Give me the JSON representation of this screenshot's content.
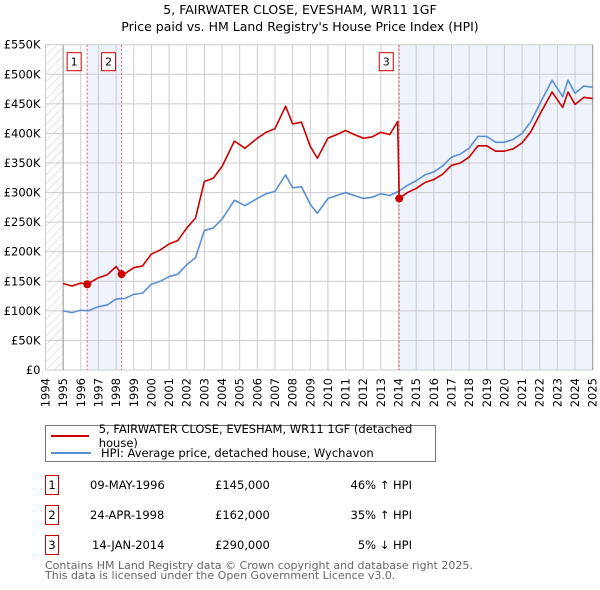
{
  "chart_data": {
    "type": "line",
    "title": "5, FAIRWATER CLOSE, EVESHAM, WR11 1GF",
    "subtitle": "Price paid vs. HM Land Registry's House Price Index (HPI)",
    "xlim": [
      1994,
      2025
    ],
    "ylim": [
      0,
      550000
    ],
    "x_ticks": [
      "1994",
      "1995",
      "1996",
      "1997",
      "1998",
      "1999",
      "2000",
      "2001",
      "2002",
      "2003",
      "2004",
      "2005",
      "2006",
      "2007",
      "2008",
      "2009",
      "2010",
      "2011",
      "2012",
      "2013",
      "2014",
      "2015",
      "2016",
      "2017",
      "2018",
      "2019",
      "2020",
      "2021",
      "2022",
      "2023",
      "2024",
      "2025"
    ],
    "y_ticks": [
      {
        "v": 0,
        "label": "£0"
      },
      {
        "v": 50000,
        "label": "£50K"
      },
      {
        "v": 100000,
        "label": "£100K"
      },
      {
        "v": 150000,
        "label": "£150K"
      },
      {
        "v": 200000,
        "label": "£200K"
      },
      {
        "v": 250000,
        "label": "£250K"
      },
      {
        "v": 300000,
        "label": "£300K"
      },
      {
        "v": 350000,
        "label": "£350K"
      },
      {
        "v": 400000,
        "label": "£400K"
      },
      {
        "v": 450000,
        "label": "£450K"
      },
      {
        "v": 500000,
        "label": "£500K"
      },
      {
        "v": 550000,
        "label": "£550K"
      }
    ],
    "grid": true,
    "series": [
      {
        "name": "5, FAIRWATER CLOSE, EVESHAM, WR11 1GF (detached house)",
        "color": "#cc0000",
        "points": [
          [
            1995.0,
            146000
          ],
          [
            1995.5,
            142000
          ],
          [
            1996.0,
            147000
          ],
          [
            1996.36,
            145000
          ],
          [
            1997.0,
            156000
          ],
          [
            1997.5,
            161000
          ],
          [
            1998.0,
            175000
          ],
          [
            1998.31,
            162000
          ],
          [
            1998.5,
            163000
          ],
          [
            1999.0,
            173000
          ],
          [
            1999.5,
            176000
          ],
          [
            2000.0,
            196000
          ],
          [
            2000.5,
            203000
          ],
          [
            2001.0,
            213000
          ],
          [
            2001.5,
            219000
          ],
          [
            2002.0,
            240000
          ],
          [
            2002.5,
            257000
          ],
          [
            2003.0,
            319000
          ],
          [
            2003.5,
            324000
          ],
          [
            2004.0,
            344000
          ],
          [
            2004.7,
            387000
          ],
          [
            2005.3,
            375000
          ],
          [
            2006.0,
            392000
          ],
          [
            2006.5,
            402000
          ],
          [
            2007.0,
            408000
          ],
          [
            2007.6,
            446000
          ],
          [
            2008.0,
            416000
          ],
          [
            2008.5,
            419000
          ],
          [
            2009.0,
            378000
          ],
          [
            2009.4,
            358000
          ],
          [
            2010.0,
            392000
          ],
          [
            2010.5,
            398000
          ],
          [
            2011.0,
            405000
          ],
          [
            2011.5,
            398000
          ],
          [
            2012.0,
            392000
          ],
          [
            2012.5,
            394000
          ],
          [
            2013.0,
            402000
          ],
          [
            2013.5,
            398000
          ],
          [
            2013.95,
            420000
          ],
          [
            2014.04,
            290000
          ],
          [
            2014.5,
            300000
          ],
          [
            2015.0,
            307000
          ],
          [
            2015.5,
            317000
          ],
          [
            2016.0,
            322000
          ],
          [
            2016.5,
            331000
          ],
          [
            2017.0,
            346000
          ],
          [
            2017.5,
            350000
          ],
          [
            2018.0,
            360000
          ],
          [
            2018.5,
            379000
          ],
          [
            2019.0,
            379000
          ],
          [
            2019.5,
            370000
          ],
          [
            2020.0,
            370000
          ],
          [
            2020.5,
            374000
          ],
          [
            2021.0,
            384000
          ],
          [
            2021.5,
            403000
          ],
          [
            2022.0,
            432000
          ],
          [
            2022.7,
            470000
          ],
          [
            2023.3,
            444000
          ],
          [
            2023.6,
            470000
          ],
          [
            2024.0,
            449000
          ],
          [
            2024.5,
            461000
          ],
          [
            2025.0,
            459000
          ]
        ]
      },
      {
        "name": "HPI: Average price, detached house, Wychavon",
        "color": "#5b8fd4",
        "points": [
          [
            1995.0,
            100000
          ],
          [
            1995.5,
            97000
          ],
          [
            1996.0,
            101000
          ],
          [
            1996.4,
            100000
          ],
          [
            1997.0,
            107000
          ],
          [
            1997.5,
            110000
          ],
          [
            1998.0,
            120000
          ],
          [
            1998.5,
            121000
          ],
          [
            1999.0,
            128000
          ],
          [
            1999.5,
            130000
          ],
          [
            2000.0,
            145000
          ],
          [
            2000.5,
            150000
          ],
          [
            2001.0,
            158000
          ],
          [
            2001.5,
            162000
          ],
          [
            2002.0,
            178000
          ],
          [
            2002.5,
            190000
          ],
          [
            2003.0,
            236000
          ],
          [
            2003.5,
            240000
          ],
          [
            2004.0,
            255000
          ],
          [
            2004.7,
            287000
          ],
          [
            2005.3,
            278000
          ],
          [
            2006.0,
            290000
          ],
          [
            2006.5,
            298000
          ],
          [
            2007.0,
            302000
          ],
          [
            2007.6,
            330000
          ],
          [
            2008.0,
            308000
          ],
          [
            2008.5,
            310000
          ],
          [
            2009.0,
            280000
          ],
          [
            2009.4,
            265000
          ],
          [
            2010.0,
            290000
          ],
          [
            2010.5,
            295000
          ],
          [
            2011.0,
            300000
          ],
          [
            2011.5,
            295000
          ],
          [
            2012.0,
            290000
          ],
          [
            2012.5,
            292000
          ],
          [
            2013.0,
            298000
          ],
          [
            2013.5,
            295000
          ],
          [
            2014.0,
            302000
          ],
          [
            2014.5,
            312000
          ],
          [
            2015.0,
            320000
          ],
          [
            2015.5,
            330000
          ],
          [
            2016.0,
            335000
          ],
          [
            2016.5,
            345000
          ],
          [
            2017.0,
            360000
          ],
          [
            2017.5,
            365000
          ],
          [
            2018.0,
            375000
          ],
          [
            2018.5,
            395000
          ],
          [
            2019.0,
            395000
          ],
          [
            2019.5,
            385000
          ],
          [
            2020.0,
            385000
          ],
          [
            2020.5,
            390000
          ],
          [
            2021.0,
            400000
          ],
          [
            2021.5,
            420000
          ],
          [
            2022.0,
            450000
          ],
          [
            2022.7,
            490000
          ],
          [
            2023.3,
            462000
          ],
          [
            2023.6,
            490000
          ],
          [
            2024.0,
            468000
          ],
          [
            2024.5,
            480000
          ],
          [
            2025.0,
            478000
          ]
        ]
      }
    ],
    "sales": [
      {
        "label": "1",
        "x": 1996.36,
        "price": 145000,
        "date": "09-MAY-1996",
        "price_text": "£145,000",
        "hpi_text": "46% ↑ HPI"
      },
      {
        "label": "2",
        "x": 1998.31,
        "price": 162000,
        "date": "24-APR-1998",
        "price_text": "£162,000",
        "hpi_text": "35% ↑ HPI"
      },
      {
        "label": "3",
        "x": 2014.04,
        "price": 290000,
        "date": "14-JAN-2014",
        "price_text": "£290,000",
        "hpi_text": "5% ↓ HPI"
      }
    ],
    "legend_placement": "bottom"
  },
  "footer": {
    "line1": "Contains HM Land Registry data © Crown copyright and database right 2025.",
    "line2": "This data is licensed under the Open Government Licence v3.0."
  }
}
